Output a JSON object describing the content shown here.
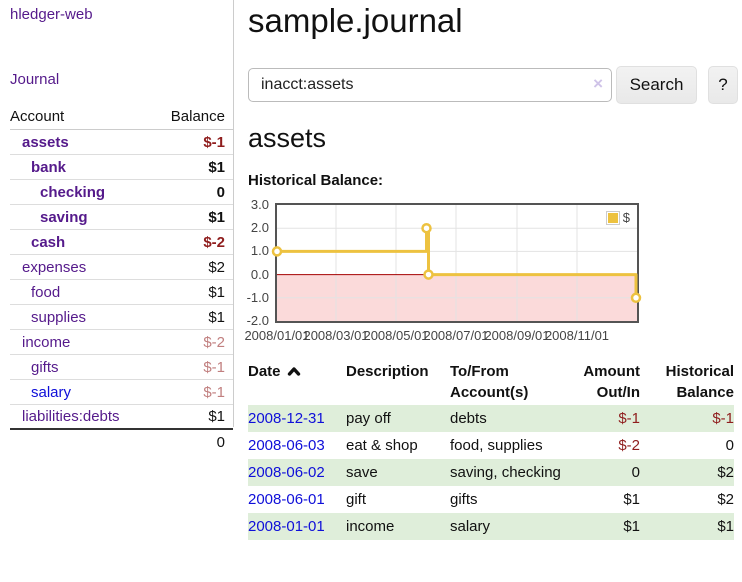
{
  "app": {
    "brand": "hledger-web",
    "nav_journal": "Journal"
  },
  "sidebar": {
    "header": {
      "account": "Account",
      "balance": "Balance"
    },
    "accounts": [
      {
        "name": "assets",
        "depth": 1,
        "bold": true,
        "balance": "$-1",
        "neg": "strong"
      },
      {
        "name": "bank",
        "depth": 2,
        "bold": true,
        "balance": "$1"
      },
      {
        "name": "checking",
        "depth": 3,
        "bold": true,
        "balance": "0"
      },
      {
        "name": "saving",
        "depth": 3,
        "bold": true,
        "balance": "$1"
      },
      {
        "name": "cash",
        "depth": 2,
        "bold": true,
        "balance": "$-2",
        "neg": "strong"
      },
      {
        "name": "expenses",
        "depth": 1,
        "bold": false,
        "balance": "$2"
      },
      {
        "name": "food",
        "depth": 2,
        "bold": false,
        "balance": "$1"
      },
      {
        "name": "supplies",
        "depth": 2,
        "bold": false,
        "balance": "$1"
      },
      {
        "name": "income",
        "depth": 1,
        "bold": false,
        "balance": "$-2",
        "neg": "muted"
      },
      {
        "name": "gifts",
        "depth": 2,
        "bold": false,
        "balance": "$-1",
        "neg": "muted"
      },
      {
        "name": "salary",
        "depth": 2,
        "bold": false,
        "balance": "$-1",
        "neg": "muted",
        "link": "blue"
      },
      {
        "name": "liabilities:debts",
        "depth": 1,
        "bold": false,
        "balance": "$1"
      }
    ],
    "total": "0"
  },
  "main": {
    "title": "sample.journal",
    "search": {
      "value": "inacct:assets",
      "clear": "×",
      "button": "Search",
      "help": "?"
    },
    "account_heading": "assets",
    "chart_label": "Historical Balance:"
  },
  "chart_data": {
    "type": "line",
    "title": "Historical Balance",
    "step": true,
    "x_range": [
      "2008-01-01",
      "2009-01-01"
    ],
    "ylim": [
      -2,
      3
    ],
    "yticks": [
      3,
      2,
      1,
      0,
      -1,
      -2
    ],
    "ylabels": [
      "3.0",
      "2.0",
      "1.0",
      "0.0",
      "-1.0",
      "-2.0"
    ],
    "xticks": [
      "2008-01-01",
      "2008-03-01",
      "2008-05-01",
      "2008-07-01",
      "2008-09-01",
      "2008-11-01"
    ],
    "xlabels": [
      "2008/01/01",
      "2008/03/01",
      "2008/05/01",
      "2008/07/01",
      "2008/09/01",
      "2008/11/01"
    ],
    "grid": true,
    "legend_position": "top-right",
    "series": [
      {
        "name": "$",
        "points": [
          [
            "2008-01-01",
            1
          ],
          [
            "2008-06-01",
            2
          ],
          [
            "2008-06-02",
            2
          ],
          [
            "2008-06-03",
            0
          ],
          [
            "2008-12-31",
            -1
          ]
        ]
      }
    ],
    "colors": {
      "series": "#edc240",
      "negative_region": "#fbdada",
      "zero_line": "#a40000",
      "grid": "#e3e3e3",
      "border": "#545454"
    }
  },
  "register": {
    "headers": {
      "date": "Date",
      "description": "Description",
      "tofrom_line1": "To/From",
      "tofrom_line2": "Account(s)",
      "amount_line1": "Amount",
      "amount_line2": "Out/In",
      "balance_line1": "Historical",
      "balance_line2": "Balance"
    },
    "rows": [
      {
        "date": "2008-12-31",
        "description": "pay off",
        "accounts": "debts",
        "amount": "$-1",
        "balance": "$-1"
      },
      {
        "date": "2008-06-03",
        "description": "eat & shop",
        "accounts": "food, supplies",
        "amount": "$-2",
        "balance": "0"
      },
      {
        "date": "2008-06-02",
        "description": "save",
        "accounts": "saving, checking",
        "amount": "0",
        "balance": "$2"
      },
      {
        "date": "2008-06-01",
        "description": "gift",
        "accounts": "gifts",
        "amount": "$1",
        "balance": "$2"
      },
      {
        "date": "2008-01-01",
        "description": "income",
        "accounts": "salary",
        "amount": "$1",
        "balance": "$1"
      }
    ]
  }
}
